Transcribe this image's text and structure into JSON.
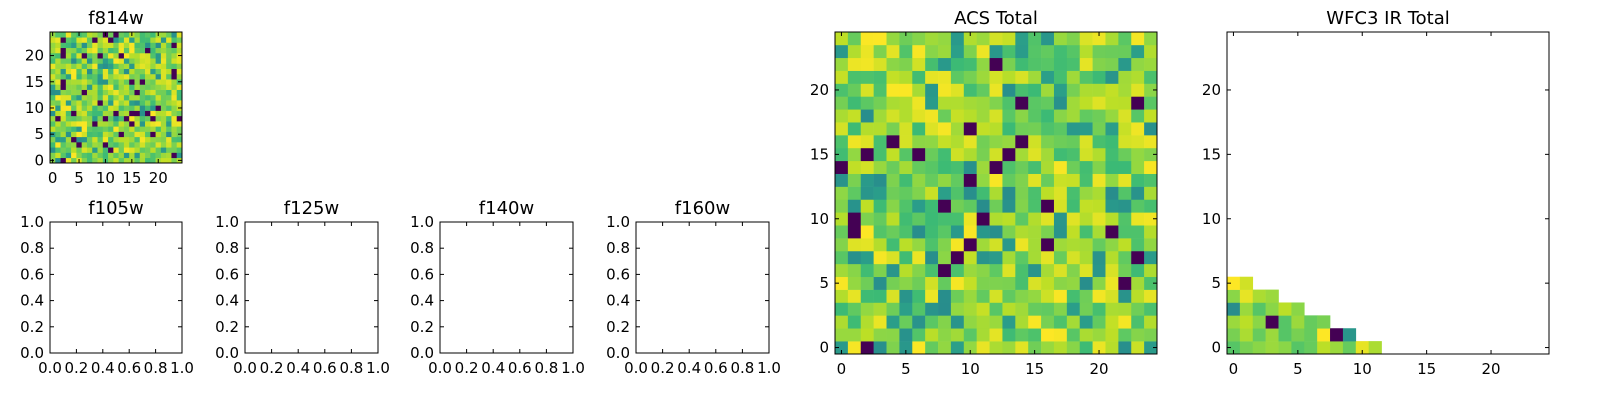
{
  "colors": {
    "palette": [
      "#440154",
      "#26828e",
      "#2a9d8a",
      "#35b779",
      "#5cc863",
      "#8fd744",
      "#bddf26",
      "#fde725"
    ],
    "axes": "#000000",
    "background": "#ffffff"
  },
  "chart_data": [
    {
      "id": "f814w",
      "type": "heatmap",
      "title": "f814w",
      "xlim": [
        -0.5,
        24.5
      ],
      "ylim": [
        -0.5,
        24.5
      ],
      "xticks": [
        0,
        5,
        10,
        15,
        20
      ],
      "yticks": [
        0,
        5,
        10,
        15,
        20
      ],
      "grid_size": [
        25,
        25
      ],
      "value_range": [
        0,
        1
      ],
      "data_note": "25x25 pseudo-random pixel values (dominant greens/yellows, few dark outliers)",
      "seed": 814
    },
    {
      "id": "f105w",
      "type": "empty",
      "title": "f105w",
      "xlim": [
        0,
        1
      ],
      "ylim": [
        0,
        1
      ],
      "xticks": [
        "0.0",
        "0.2",
        "0.4",
        "0.6",
        "0.8",
        "1.0"
      ],
      "yticks": [
        "0.0",
        "0.2",
        "0.4",
        "0.6",
        "0.8",
        "1.0"
      ]
    },
    {
      "id": "f125w",
      "type": "empty",
      "title": "f125w",
      "xlim": [
        0,
        1
      ],
      "ylim": [
        0,
        1
      ],
      "xticks": [
        "0.0",
        "0.2",
        "0.4",
        "0.6",
        "0.8",
        "1.0"
      ],
      "yticks": [
        "0.0",
        "0.2",
        "0.4",
        "0.6",
        "0.8",
        "1.0"
      ]
    },
    {
      "id": "f140w",
      "type": "empty",
      "title": "f140w",
      "xlim": [
        0,
        1
      ],
      "ylim": [
        0,
        1
      ],
      "xticks": [
        "0.0",
        "0.2",
        "0.4",
        "0.6",
        "0.8",
        "1.0"
      ],
      "yticks": [
        "0.0",
        "0.2",
        "0.4",
        "0.6",
        "0.8",
        "1.0"
      ]
    },
    {
      "id": "f160w",
      "type": "empty",
      "title": "f160w",
      "xlim": [
        0,
        1
      ],
      "ylim": [
        0,
        1
      ],
      "xticks": [
        "0.0",
        "0.2",
        "0.4",
        "0.6",
        "0.8",
        "1.0"
      ],
      "yticks": [
        "0.0",
        "0.2",
        "0.4",
        "0.6",
        "0.8",
        "1.0"
      ]
    },
    {
      "id": "acs-total",
      "type": "heatmap",
      "title": "ACS Total",
      "xlim": [
        -0.5,
        24.5
      ],
      "ylim": [
        -0.5,
        24.5
      ],
      "xticks": [
        0,
        5,
        10,
        15,
        20
      ],
      "yticks": [
        0,
        5,
        10,
        15,
        20
      ],
      "grid_size": [
        25,
        25
      ],
      "value_range": [
        0,
        1
      ],
      "seed": 1234
    },
    {
      "id": "wfc3-ir-total",
      "type": "heatmap",
      "title": "WFC3 IR Total",
      "xlim": [
        -0.5,
        24.5
      ],
      "ylim": [
        -0.5,
        24.5
      ],
      "xticks": [
        0,
        5,
        10,
        15,
        20
      ],
      "yticks": [
        0,
        5,
        10,
        15,
        20
      ],
      "grid_size": [
        25,
        25
      ],
      "value_range": [
        0,
        1
      ],
      "filled_region": "lower-left triangle (row r filled for columns 0 to 11 - 2r)",
      "seed": 4321,
      "fixed_cells": [
        {
          "row": 0,
          "col": 0,
          "value": 0.55
        },
        {
          "row": 0,
          "col": 1,
          "value": 0.65
        },
        {
          "row": 0,
          "col": 2,
          "value": 0.7
        },
        {
          "row": 0,
          "col": 3,
          "value": 0.75
        },
        {
          "row": 0,
          "col": 4,
          "value": 0.7
        },
        {
          "row": 0,
          "col": 5,
          "value": 0.55
        },
        {
          "row": 0,
          "col": 6,
          "value": 0.6
        },
        {
          "row": 0,
          "col": 7,
          "value": 0.85
        },
        {
          "row": 0,
          "col": 8,
          "value": 0.75
        },
        {
          "row": 0,
          "col": 9,
          "value": 0.6
        },
        {
          "row": 0,
          "col": 10,
          "value": 0.95
        },
        {
          "row": 0,
          "col": 11,
          "value": 0.8
        },
        {
          "row": 1,
          "col": 0,
          "value": 0.65
        },
        {
          "row": 1,
          "col": 1,
          "value": 0.8
        },
        {
          "row": 1,
          "col": 2,
          "value": 0.6
        },
        {
          "row": 1,
          "col": 3,
          "value": 0.75
        },
        {
          "row": 1,
          "col": 4,
          "value": 0.55
        },
        {
          "row": 1,
          "col": 5,
          "value": 0.65
        },
        {
          "row": 1,
          "col": 6,
          "value": 0.6
        },
        {
          "row": 1,
          "col": 7,
          "value": 1.0
        },
        {
          "row": 1,
          "col": 8,
          "value": 0.0
        },
        {
          "row": 1,
          "col": 9,
          "value": 0.25
        },
        {
          "row": 2,
          "col": 0,
          "value": 0.75
        },
        {
          "row": 2,
          "col": 1,
          "value": 0.85
        },
        {
          "row": 2,
          "col": 2,
          "value": 0.7
        },
        {
          "row": 2,
          "col": 3,
          "value": 0.0
        },
        {
          "row": 2,
          "col": 4,
          "value": 0.55
        },
        {
          "row": 2,
          "col": 5,
          "value": 0.75
        },
        {
          "row": 2,
          "col": 6,
          "value": 0.6
        },
        {
          "row": 2,
          "col": 7,
          "value": 0.65
        },
        {
          "row": 3,
          "col": 0,
          "value": 0.2
        },
        {
          "row": 3,
          "col": 1,
          "value": 0.75
        },
        {
          "row": 3,
          "col": 2,
          "value": 0.55
        },
        {
          "row": 3,
          "col": 3,
          "value": 0.7
        },
        {
          "row": 3,
          "col": 4,
          "value": 0.85
        },
        {
          "row": 3,
          "col": 5,
          "value": 0.7
        },
        {
          "row": 4,
          "col": 0,
          "value": 0.7
        },
        {
          "row": 4,
          "col": 1,
          "value": 0.95
        },
        {
          "row": 4,
          "col": 2,
          "value": 0.8
        },
        {
          "row": 4,
          "col": 3,
          "value": 0.75
        },
        {
          "row": 5,
          "col": 0,
          "value": 1.0
        },
        {
          "row": 5,
          "col": 1,
          "value": 0.9
        }
      ]
    }
  ]
}
